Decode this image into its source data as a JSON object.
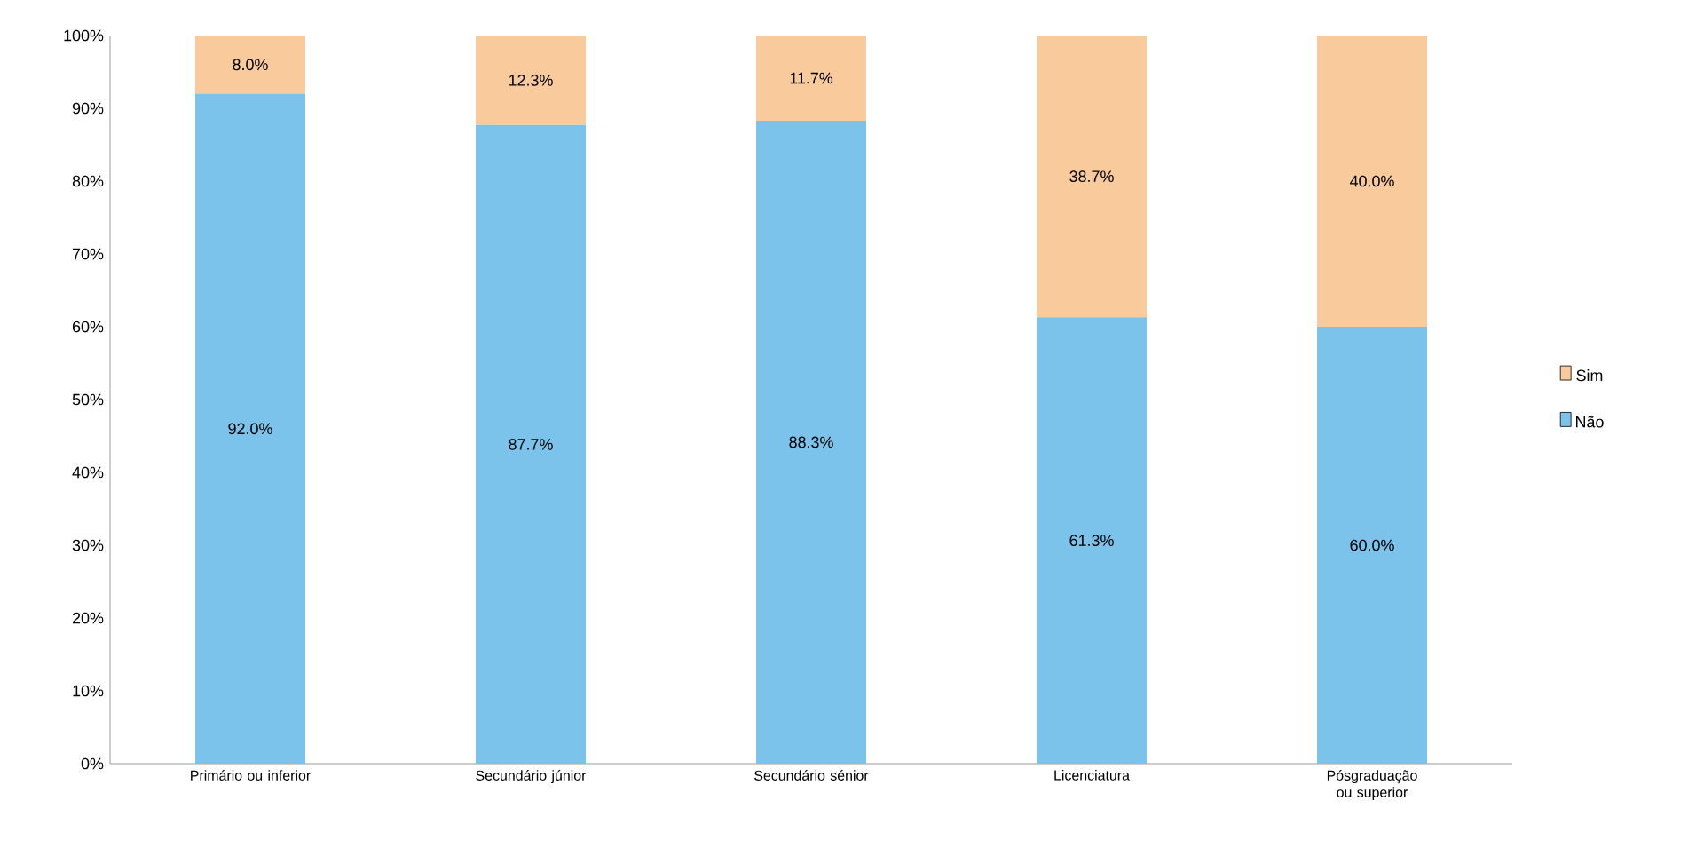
{
  "chart_data": {
    "type": "bar",
    "stacked": true,
    "categories": [
      "Primário  ou inferior",
      "Secundário júnior",
      "Secundário sénior",
      "Licenciatura",
      "Pósgraduação ou superior"
    ],
    "series": [
      {
        "name": "Não",
        "color": "#7cc3ec",
        "values": [
          92.0,
          87.7,
          88.3,
          61.3,
          60.0
        ],
        "value_labels": [
          "92.0%",
          "87.7%",
          "88.3%",
          "61.3%",
          "60.0%"
        ]
      },
      {
        "name": "Sim",
        "color": "#f9cb9c",
        "values": [
          8.0,
          12.3,
          11.7,
          38.7,
          40.0
        ],
        "value_labels": [
          "8.0%",
          "12.3%",
          "11.7%",
          "38.7%",
          "40.0%"
        ]
      }
    ],
    "ylim": [
      0,
      100
    ],
    "yticks": [
      {
        "value": 0,
        "label": "0%"
      },
      {
        "value": 10,
        "label": "10%"
      },
      {
        "value": 20,
        "label": "20%"
      },
      {
        "value": 30,
        "label": "30%"
      },
      {
        "value": 40,
        "label": "40%"
      },
      {
        "value": 50,
        "label": "50%"
      },
      {
        "value": 60,
        "label": "60%"
      },
      {
        "value": 70,
        "label": "70%"
      },
      {
        "value": 80,
        "label": "80%"
      },
      {
        "value": 90,
        "label": "90%"
      },
      {
        "value": 100,
        "label": "100%"
      }
    ],
    "legend": "right"
  }
}
